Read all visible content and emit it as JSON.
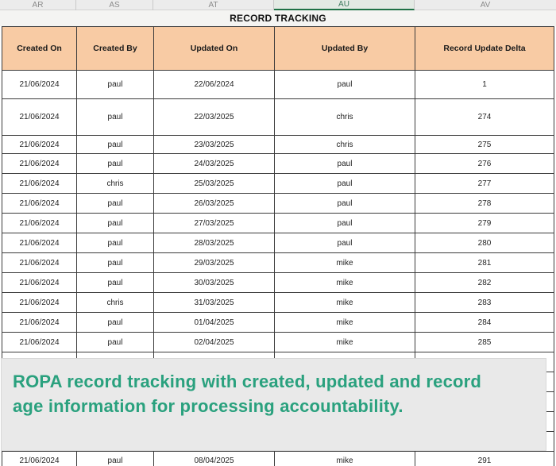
{
  "sheet": {
    "title": "RECORD TRACKING",
    "column_strip": [
      "AR",
      "AS",
      "AT",
      "AU",
      "AV"
    ],
    "selected_column": "AU"
  },
  "table": {
    "headers": [
      "Created On",
      "Created By",
      "Updated On",
      "Updated By",
      "Record Update Delta"
    ],
    "rows": [
      [
        "21/06/2024",
        "paul",
        "22/06/2024",
        "paul",
        "1"
      ],
      [
        "21/06/2024",
        "paul",
        "22/03/2025",
        "chris",
        "274"
      ],
      [
        "21/06/2024",
        "paul",
        "23/03/2025",
        "chris",
        "275"
      ],
      [
        "21/06/2024",
        "paul",
        "24/03/2025",
        "paul",
        "276"
      ],
      [
        "21/06/2024",
        "chris",
        "25/03/2025",
        "paul",
        "277"
      ],
      [
        "21/06/2024",
        "paul",
        "26/03/2025",
        "paul",
        "278"
      ],
      [
        "21/06/2024",
        "paul",
        "27/03/2025",
        "paul",
        "279"
      ],
      [
        "21/06/2024",
        "paul",
        "28/03/2025",
        "paul",
        "280"
      ],
      [
        "21/06/2024",
        "paul",
        "29/03/2025",
        "mike",
        "281"
      ],
      [
        "21/06/2024",
        "paul",
        "30/03/2025",
        "mike",
        "282"
      ],
      [
        "21/06/2024",
        "chris",
        "31/03/2025",
        "mike",
        "283"
      ],
      [
        "21/06/2024",
        "paul",
        "01/04/2025",
        "mike",
        "284"
      ],
      [
        "21/06/2024",
        "paul",
        "02/04/2025",
        "mike",
        "285"
      ]
    ],
    "bottom_row": [
      "21/06/2024",
      "paul",
      "08/04/2025",
      "mike",
      "291"
    ]
  },
  "caption": {
    "text": "ROPA record tracking with created, updated and record\nage information for processing accountability.",
    "text_color": "#2aa17e",
    "background": "#e9e9e9"
  },
  "colors": {
    "header_fill": "#f8cba4",
    "grid_border": "#3b3b3b",
    "selected_column_accent": "#1f7246",
    "column_strip_background": "#ececec",
    "title_row_background": "#f4f4f2"
  }
}
